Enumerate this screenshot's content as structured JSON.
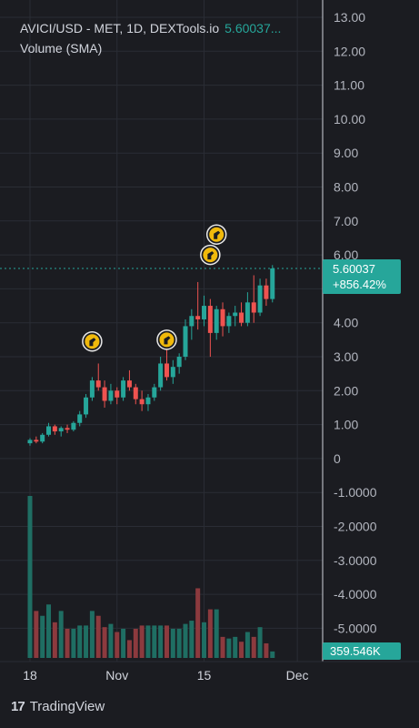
{
  "header": {
    "symbol_line": "AVICI/USD - MET, 1D, DEXTools.io",
    "price_short": "5.60037...",
    "volume_label": "Volume (SMA)"
  },
  "price_tag": {
    "price": "5.60037",
    "change": "+856.42%"
  },
  "volume_tag": "359.546K",
  "footer": {
    "brand": "TradingView",
    "logo": "17"
  },
  "colors": {
    "up": "#26a69a",
    "down": "#ef5350",
    "up_vol": "#1f6e63",
    "down_vol": "#8c3a3e",
    "bg": "#1b1c21",
    "grid": "#2a2d35"
  },
  "chart_data": {
    "type": "candlestick",
    "price_axis": {
      "ylim": [
        -5.5,
        13
      ],
      "ticks": [
        "13.00",
        "12.00",
        "11.00",
        "10.00",
        "9.00",
        "8.00",
        "7.00",
        "6.00",
        "5.00",
        "4.00",
        "3.00",
        "2.00",
        "1.00",
        "0",
        "-1.0000",
        "-2.0000",
        "-3.0000",
        "-4.0000",
        "-5.0000"
      ],
      "tick_values": [
        13,
        12,
        11,
        10,
        9,
        8,
        7,
        6,
        5,
        4,
        3,
        2,
        1,
        0,
        -1,
        -2,
        -3,
        -4,
        -5
      ]
    },
    "x_ticks": [
      {
        "label": "18",
        "day": 0
      },
      {
        "label": "Nov",
        "day": 14
      },
      {
        "label": "15",
        "day": 28
      },
      {
        "label": "Dec",
        "day": 43
      }
    ],
    "candles": [
      {
        "o": 0.45,
        "h": 0.6,
        "l": 0.38,
        "c": 0.55
      },
      {
        "o": 0.55,
        "h": 0.65,
        "l": 0.45,
        "c": 0.5
      },
      {
        "o": 0.5,
        "h": 0.75,
        "l": 0.45,
        "c": 0.7
      },
      {
        "o": 0.7,
        "h": 1.05,
        "l": 0.65,
        "c": 0.95
      },
      {
        "o": 0.95,
        "h": 1.0,
        "l": 0.7,
        "c": 0.8
      },
      {
        "o": 0.8,
        "h": 0.95,
        "l": 0.65,
        "c": 0.9
      },
      {
        "o": 0.9,
        "h": 1.0,
        "l": 0.75,
        "c": 0.85
      },
      {
        "o": 0.85,
        "h": 1.1,
        "l": 0.8,
        "c": 1.05
      },
      {
        "o": 1.05,
        "h": 1.4,
        "l": 0.95,
        "c": 1.3
      },
      {
        "o": 1.3,
        "h": 1.9,
        "l": 1.2,
        "c": 1.8
      },
      {
        "o": 1.8,
        "h": 2.4,
        "l": 1.7,
        "c": 2.3
      },
      {
        "o": 2.3,
        "h": 2.8,
        "l": 2.0,
        "c": 2.1
      },
      {
        "o": 2.1,
        "h": 2.3,
        "l": 1.5,
        "c": 1.7
      },
      {
        "o": 1.7,
        "h": 2.2,
        "l": 1.6,
        "c": 2.0
      },
      {
        "o": 2.0,
        "h": 2.1,
        "l": 1.6,
        "c": 1.8
      },
      {
        "o": 1.8,
        "h": 2.4,
        "l": 1.7,
        "c": 2.3
      },
      {
        "o": 2.3,
        "h": 2.6,
        "l": 2.0,
        "c": 2.1
      },
      {
        "o": 2.1,
        "h": 2.2,
        "l": 1.6,
        "c": 1.75
      },
      {
        "o": 1.75,
        "h": 2.0,
        "l": 1.4,
        "c": 1.6
      },
      {
        "o": 1.6,
        "h": 1.9,
        "l": 1.4,
        "c": 1.8
      },
      {
        "o": 1.8,
        "h": 2.2,
        "l": 1.7,
        "c": 2.1
      },
      {
        "o": 2.1,
        "h": 3.0,
        "l": 2.0,
        "c": 2.8
      },
      {
        "o": 2.8,
        "h": 3.2,
        "l": 2.3,
        "c": 2.4
      },
      {
        "o": 2.4,
        "h": 2.9,
        "l": 2.2,
        "c": 2.7
      },
      {
        "o": 2.7,
        "h": 3.1,
        "l": 2.5,
        "c": 3.0
      },
      {
        "o": 3.0,
        "h": 4.1,
        "l": 2.9,
        "c": 3.9
      },
      {
        "o": 3.9,
        "h": 4.4,
        "l": 3.5,
        "c": 4.2
      },
      {
        "o": 4.2,
        "h": 5.2,
        "l": 3.8,
        "c": 4.1
      },
      {
        "o": 4.1,
        "h": 4.8,
        "l": 3.9,
        "c": 4.5
      },
      {
        "o": 4.5,
        "h": 4.7,
        "l": 3.0,
        "c": 3.7
      },
      {
        "o": 3.7,
        "h": 4.5,
        "l": 3.5,
        "c": 4.4
      },
      {
        "o": 4.4,
        "h": 4.6,
        "l": 3.6,
        "c": 3.9
      },
      {
        "o": 3.9,
        "h": 4.3,
        "l": 3.7,
        "c": 4.2
      },
      {
        "o": 4.2,
        "h": 4.5,
        "l": 3.9,
        "c": 4.3
      },
      {
        "o": 4.3,
        "h": 4.6,
        "l": 3.9,
        "c": 4.0
      },
      {
        "o": 4.0,
        "h": 4.9,
        "l": 3.9,
        "c": 4.6
      },
      {
        "o": 4.6,
        "h": 5.4,
        "l": 4.0,
        "c": 4.3
      },
      {
        "o": 4.3,
        "h": 5.3,
        "l": 4.2,
        "c": 5.1
      },
      {
        "o": 5.1,
        "h": 5.3,
        "l": 4.5,
        "c": 4.7
      },
      {
        "o": 4.7,
        "h": 5.7,
        "l": 4.6,
        "c": 5.6
      }
    ],
    "volume": [
      1.0,
      0.29,
      0.26,
      0.33,
      0.22,
      0.29,
      0.18,
      0.18,
      0.2,
      0.2,
      0.29,
      0.26,
      0.19,
      0.21,
      0.16,
      0.18,
      0.11,
      0.18,
      0.2,
      0.2,
      0.2,
      0.2,
      0.2,
      0.18,
      0.18,
      0.21,
      0.23,
      0.43,
      0.22,
      0.3,
      0.3,
      0.13,
      0.12,
      0.13,
      0.1,
      0.16,
      0.13,
      0.19,
      0.09,
      0.04
    ],
    "markers": [
      {
        "day": 10,
        "price": 3.45
      },
      {
        "day": 22,
        "price": 3.5
      },
      {
        "day": 29,
        "price": 6.0
      },
      {
        "day": 30,
        "price": 6.6
      }
    ],
    "last_price": 5.60037
  }
}
